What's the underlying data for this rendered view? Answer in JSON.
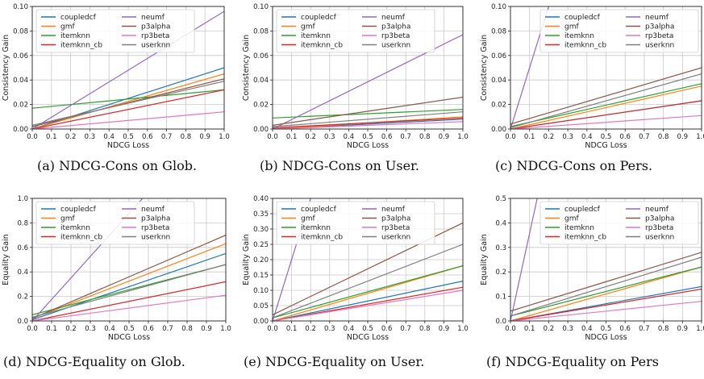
{
  "colors": {
    "coupledcf": "#1f77b4",
    "gmf": "#ff7f0e",
    "itemknn": "#2ca02c",
    "itemknn_cb": "#d62728",
    "neumf": "#9467bd",
    "p3alpha": "#8c564b",
    "rp3beta": "#e377c2",
    "userknn": "#7f7f7f"
  },
  "chart_data": [
    {
      "type": "line",
      "caption": "(a) NDCG-Cons on Glob.",
      "xlabel": "NDCG Loss",
      "ylabel": "Consistency Gain",
      "xlim": [
        0,
        1
      ],
      "ylim": [
        0,
        0.1
      ],
      "xticks": [
        "0.0",
        "0.1",
        "0.2",
        "0.3",
        "0.4",
        "0.5",
        "0.6",
        "0.7",
        "0.8",
        "0.9",
        "1.0"
      ],
      "yticks": [
        "0.00",
        "0.02",
        "0.04",
        "0.06",
        "0.08",
        "0.10"
      ],
      "grid": true,
      "legend_position": "top-left",
      "series": [
        {
          "name": "coupledcf",
          "x": [
            0,
            1
          ],
          "y": [
            0.0,
            0.05
          ]
        },
        {
          "name": "gmf",
          "x": [
            0,
            1
          ],
          "y": [
            0.0,
            0.045
          ]
        },
        {
          "name": "itemknn",
          "x": [
            0,
            1
          ],
          "y": [
            0.017,
            0.032
          ]
        },
        {
          "name": "itemknn_cb",
          "x": [
            0,
            1
          ],
          "y": [
            0.0,
            0.032
          ]
        },
        {
          "name": "neumf",
          "x": [
            0,
            1
          ],
          "y": [
            0.0,
            0.096
          ]
        },
        {
          "name": "p3alpha",
          "x": [
            0,
            1
          ],
          "y": [
            0.002,
            0.041
          ]
        },
        {
          "name": "rp3beta",
          "x": [
            0,
            1
          ],
          "y": [
            0.0,
            0.014
          ]
        },
        {
          "name": "userknn",
          "x": [
            0,
            1
          ],
          "y": [
            0.003,
            0.039
          ]
        }
      ]
    },
    {
      "type": "line",
      "caption": "(b) NDCG-Cons on User.",
      "xlabel": "NDCG Loss",
      "ylabel": "Consistency Gain",
      "xlim": [
        0,
        1
      ],
      "ylim": [
        0,
        0.1
      ],
      "xticks": [
        "0.0",
        "0.1",
        "0.2",
        "0.3",
        "0.4",
        "0.5",
        "0.6",
        "0.7",
        "0.8",
        "0.9",
        "1.0"
      ],
      "yticks": [
        "0.00",
        "0.02",
        "0.04",
        "0.06",
        "0.08",
        "0.10"
      ],
      "grid": true,
      "legend_position": "top-left",
      "series": [
        {
          "name": "coupledcf",
          "x": [
            0,
            1
          ],
          "y": [
            0.0,
            0.008
          ]
        },
        {
          "name": "gmf",
          "x": [
            0,
            1
          ],
          "y": [
            0.0,
            0.01
          ]
        },
        {
          "name": "itemknn",
          "x": [
            0,
            1
          ],
          "y": [
            0.009,
            0.016
          ]
        },
        {
          "name": "itemknn_cb",
          "x": [
            0,
            1
          ],
          "y": [
            0.001,
            0.009
          ]
        },
        {
          "name": "neumf",
          "x": [
            0,
            1
          ],
          "y": [
            0.0,
            0.077
          ]
        },
        {
          "name": "p3alpha",
          "x": [
            0,
            1
          ],
          "y": [
            0.003,
            0.026
          ]
        },
        {
          "name": "rp3beta",
          "x": [
            0,
            1
          ],
          "y": [
            0.0,
            0.006
          ]
        },
        {
          "name": "userknn",
          "x": [
            0,
            1
          ],
          "y": [
            0.002,
            0.014
          ]
        }
      ]
    },
    {
      "type": "line",
      "caption": "(c) NDCG-Cons on Pers.",
      "xlabel": "NDCG Loss",
      "ylabel": "Consistency Gain",
      "xlim": [
        0,
        1
      ],
      "ylim": [
        0,
        0.1
      ],
      "xticks": [
        "0.0",
        "0.1",
        "0.2",
        "0.3",
        "0.4",
        "0.5",
        "0.6",
        "0.7",
        "0.8",
        "0.9",
        "1.0"
      ],
      "yticks": [
        "0.00",
        "0.02",
        "0.04",
        "0.06",
        "0.08",
        "0.10"
      ],
      "grid": true,
      "legend_position": "top-right",
      "series": [
        {
          "name": "coupledcf",
          "x": [
            0,
            1
          ],
          "y": [
            0.0,
            0.023
          ]
        },
        {
          "name": "gmf",
          "x": [
            0,
            1
          ],
          "y": [
            0.0,
            0.035
          ]
        },
        {
          "name": "itemknn",
          "x": [
            0,
            1
          ],
          "y": [
            0.002,
            0.037
          ]
        },
        {
          "name": "itemknn_cb",
          "x": [
            0,
            1
          ],
          "y": [
            0.0,
            0.023
          ]
        },
        {
          "name": "neumf",
          "x": [
            0,
            0.2
          ],
          "y": [
            0.0,
            0.1
          ]
        },
        {
          "name": "p3alpha",
          "x": [
            0,
            1
          ],
          "y": [
            0.004,
            0.05
          ]
        },
        {
          "name": "rp3beta",
          "x": [
            0,
            1
          ],
          "y": [
            0.0,
            0.011
          ]
        },
        {
          "name": "userknn",
          "x": [
            0,
            1
          ],
          "y": [
            0.001,
            0.045
          ]
        }
      ]
    },
    {
      "type": "line",
      "caption": "(d) NDCG-Equality on Glob.",
      "xlabel": "NDCG Loss",
      "ylabel": "Equality Gain",
      "xlim": [
        0,
        1
      ],
      "ylim": [
        0,
        1.0
      ],
      "xticks": [
        "0.0",
        "0.1",
        "0.2",
        "0.3",
        "0.4",
        "0.5",
        "0.6",
        "0.7",
        "0.8",
        "0.9",
        "1.0"
      ],
      "yticks": [
        "0.0",
        "0.2",
        "0.4",
        "0.6",
        "0.8",
        "1.0"
      ],
      "grid": true,
      "legend_position": "top-left",
      "series": [
        {
          "name": "coupledcf",
          "x": [
            0,
            1
          ],
          "y": [
            0.01,
            0.55
          ]
        },
        {
          "name": "gmf",
          "x": [
            0,
            1
          ],
          "y": [
            0.02,
            0.63
          ]
        },
        {
          "name": "itemknn",
          "x": [
            0,
            1
          ],
          "y": [
            0.05,
            0.46
          ]
        },
        {
          "name": "itemknn_cb",
          "x": [
            0,
            1
          ],
          "y": [
            0.0,
            0.32
          ]
        },
        {
          "name": "neumf",
          "x": [
            0,
            0.57
          ],
          "y": [
            0.0,
            1.0
          ]
        },
        {
          "name": "p3alpha",
          "x": [
            0,
            1
          ],
          "y": [
            0.02,
            0.7
          ]
        },
        {
          "name": "rp3beta",
          "x": [
            0,
            1
          ],
          "y": [
            0.0,
            0.21
          ]
        },
        {
          "name": "userknn",
          "x": [
            0,
            1
          ],
          "y": [
            0.03,
            0.46
          ]
        }
      ]
    },
    {
      "type": "line",
      "caption": "(e) NDCG-Equality on User.",
      "xlabel": "NDCG Loss",
      "ylabel": "Equality Gain",
      "xlim": [
        0,
        1
      ],
      "ylim": [
        0,
        0.4
      ],
      "xticks": [
        "0.0",
        "0.1",
        "0.2",
        "0.3",
        "0.4",
        "0.5",
        "0.6",
        "0.7",
        "0.8",
        "0.9",
        "1.0"
      ],
      "yticks": [
        "0.00",
        "0.05",
        "0.10",
        "0.15",
        "0.20",
        "0.25",
        "0.30",
        "0.35",
        "0.40"
      ],
      "grid": true,
      "legend_position": "top-left",
      "series": [
        {
          "name": "coupledcf",
          "x": [
            0,
            1
          ],
          "y": [
            0.0,
            0.13
          ]
        },
        {
          "name": "gmf",
          "x": [
            0,
            1
          ],
          "y": [
            0.0,
            0.18
          ]
        },
        {
          "name": "itemknn",
          "x": [
            0,
            1
          ],
          "y": [
            0.01,
            0.18
          ]
        },
        {
          "name": "itemknn_cb",
          "x": [
            0,
            1
          ],
          "y": [
            0.0,
            0.11
          ]
        },
        {
          "name": "neumf",
          "x": [
            0,
            0.2
          ],
          "y": [
            0.0,
            0.4
          ]
        },
        {
          "name": "p3alpha",
          "x": [
            0,
            1
          ],
          "y": [
            0.02,
            0.32
          ]
        },
        {
          "name": "rp3beta",
          "x": [
            0,
            1
          ],
          "y": [
            0.0,
            0.1
          ]
        },
        {
          "name": "userknn",
          "x": [
            0,
            1
          ],
          "y": [
            0.01,
            0.25
          ]
        }
      ]
    },
    {
      "type": "line",
      "caption": "(f) NDCG-Equality on Pers",
      "xlabel": "NDCG Loss",
      "ylabel": "Equality Gain",
      "xlim": [
        0,
        1
      ],
      "ylim": [
        0,
        0.5
      ],
      "xticks": [
        "0.0",
        "0.1",
        "0.2",
        "0.3",
        "0.4",
        "0.5",
        "0.6",
        "0.7",
        "0.8",
        "0.9",
        "1.0"
      ],
      "yticks": [
        "0.0",
        "0.1",
        "0.2",
        "0.3",
        "0.4",
        "0.5"
      ],
      "grid": true,
      "legend_position": "top-right",
      "series": [
        {
          "name": "coupledcf",
          "x": [
            0,
            1
          ],
          "y": [
            0.0,
            0.14
          ]
        },
        {
          "name": "gmf",
          "x": [
            0,
            1
          ],
          "y": [
            0.0,
            0.22
          ]
        },
        {
          "name": "itemknn",
          "x": [
            0,
            1
          ],
          "y": [
            0.02,
            0.22
          ]
        },
        {
          "name": "itemknn_cb",
          "x": [
            0,
            1
          ],
          "y": [
            0.0,
            0.13
          ]
        },
        {
          "name": "neumf",
          "x": [
            0,
            0.14
          ],
          "y": [
            0.0,
            0.5
          ]
        },
        {
          "name": "p3alpha",
          "x": [
            0,
            1
          ],
          "y": [
            0.04,
            0.28
          ]
        },
        {
          "name": "rp3beta",
          "x": [
            0,
            1
          ],
          "y": [
            0.0,
            0.08
          ]
        },
        {
          "name": "userknn",
          "x": [
            0,
            1
          ],
          "y": [
            0.02,
            0.26
          ]
        }
      ]
    }
  ]
}
